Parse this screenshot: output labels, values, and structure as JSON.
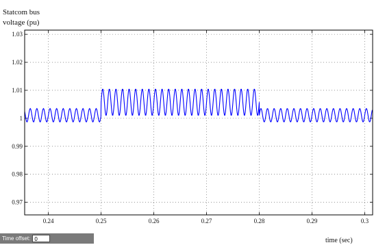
{
  "chart_data": {
    "type": "line",
    "title": "Statcom bus voltage (pu)",
    "xlabel": "time (sec)",
    "ylabel": "Statcom bus voltage (pu)",
    "xlim": [
      0.2355,
      0.3015
    ],
    "ylim": [
      0.9655,
      1.0315
    ],
    "xticks": [
      0.24,
      0.25,
      0.26,
      0.27,
      0.28,
      0.29,
      0.3
    ],
    "xtick_labels": [
      "0.24",
      "0.25",
      "0.26",
      "0.27",
      "0.28",
      "0.29",
      "0.3"
    ],
    "yticks": [
      0.97,
      0.98,
      0.99,
      1,
      1.01,
      1.02,
      1.03
    ],
    "ytick_labels": [
      "0.97",
      "0.98",
      "0.99",
      "1",
      "1.01",
      "1.02",
      "1.03"
    ],
    "grid": true,
    "grid_style": "dotted",
    "line_color": "#0000ff",
    "series": [
      {
        "segments": [
          {
            "t_start": 0.2355,
            "t_end": 0.25,
            "y_min": 0.9987,
            "y_max": 1.0035
          },
          {
            "t_start": 0.25,
            "t_end": 0.28,
            "y_min": 1.001,
            "y_max": 1.0105
          },
          {
            "t_start": 0.28,
            "t_end": 0.3015,
            "y_min": 0.9987,
            "y_max": 1.0035
          }
        ],
        "oscillation_period_sec": 0.00125
      }
    ]
  },
  "footer": {
    "time_offset_label": "Time offset:",
    "time_offset_value": "0"
  }
}
